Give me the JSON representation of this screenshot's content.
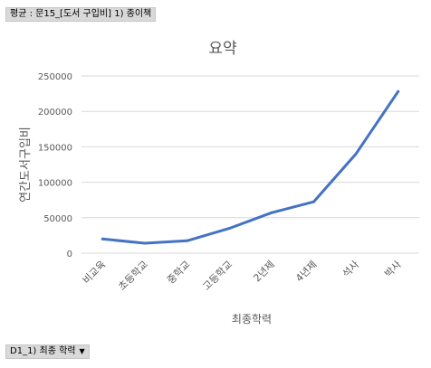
{
  "pivot": {
    "value_field": "평균 : 문15_[도서 구입비] 1) 종이책",
    "axis_field": "D1_1) 최종 학력",
    "axis_dropdown_glyph": "▼"
  },
  "chart_data": {
    "type": "line",
    "title": "요약",
    "xlabel": "최종학력",
    "ylabel": "연간도서구입비",
    "categories": [
      "비교육",
      "초등학교",
      "중학교",
      "고등학교",
      "2년제",
      "4년제",
      "석사",
      "박사"
    ],
    "series": [
      {
        "values": [
          20000,
          14000,
          17500,
          35000,
          57000,
          72500,
          140000,
          228000
        ]
      }
    ],
    "ylim": [
      0,
      250000
    ],
    "yticks": [
      0,
      50000,
      100000,
      150000,
      200000,
      250000
    ],
    "grid": true,
    "legend": "none",
    "line_color": "#4472c4",
    "grid_color": "#d9d9d9"
  }
}
